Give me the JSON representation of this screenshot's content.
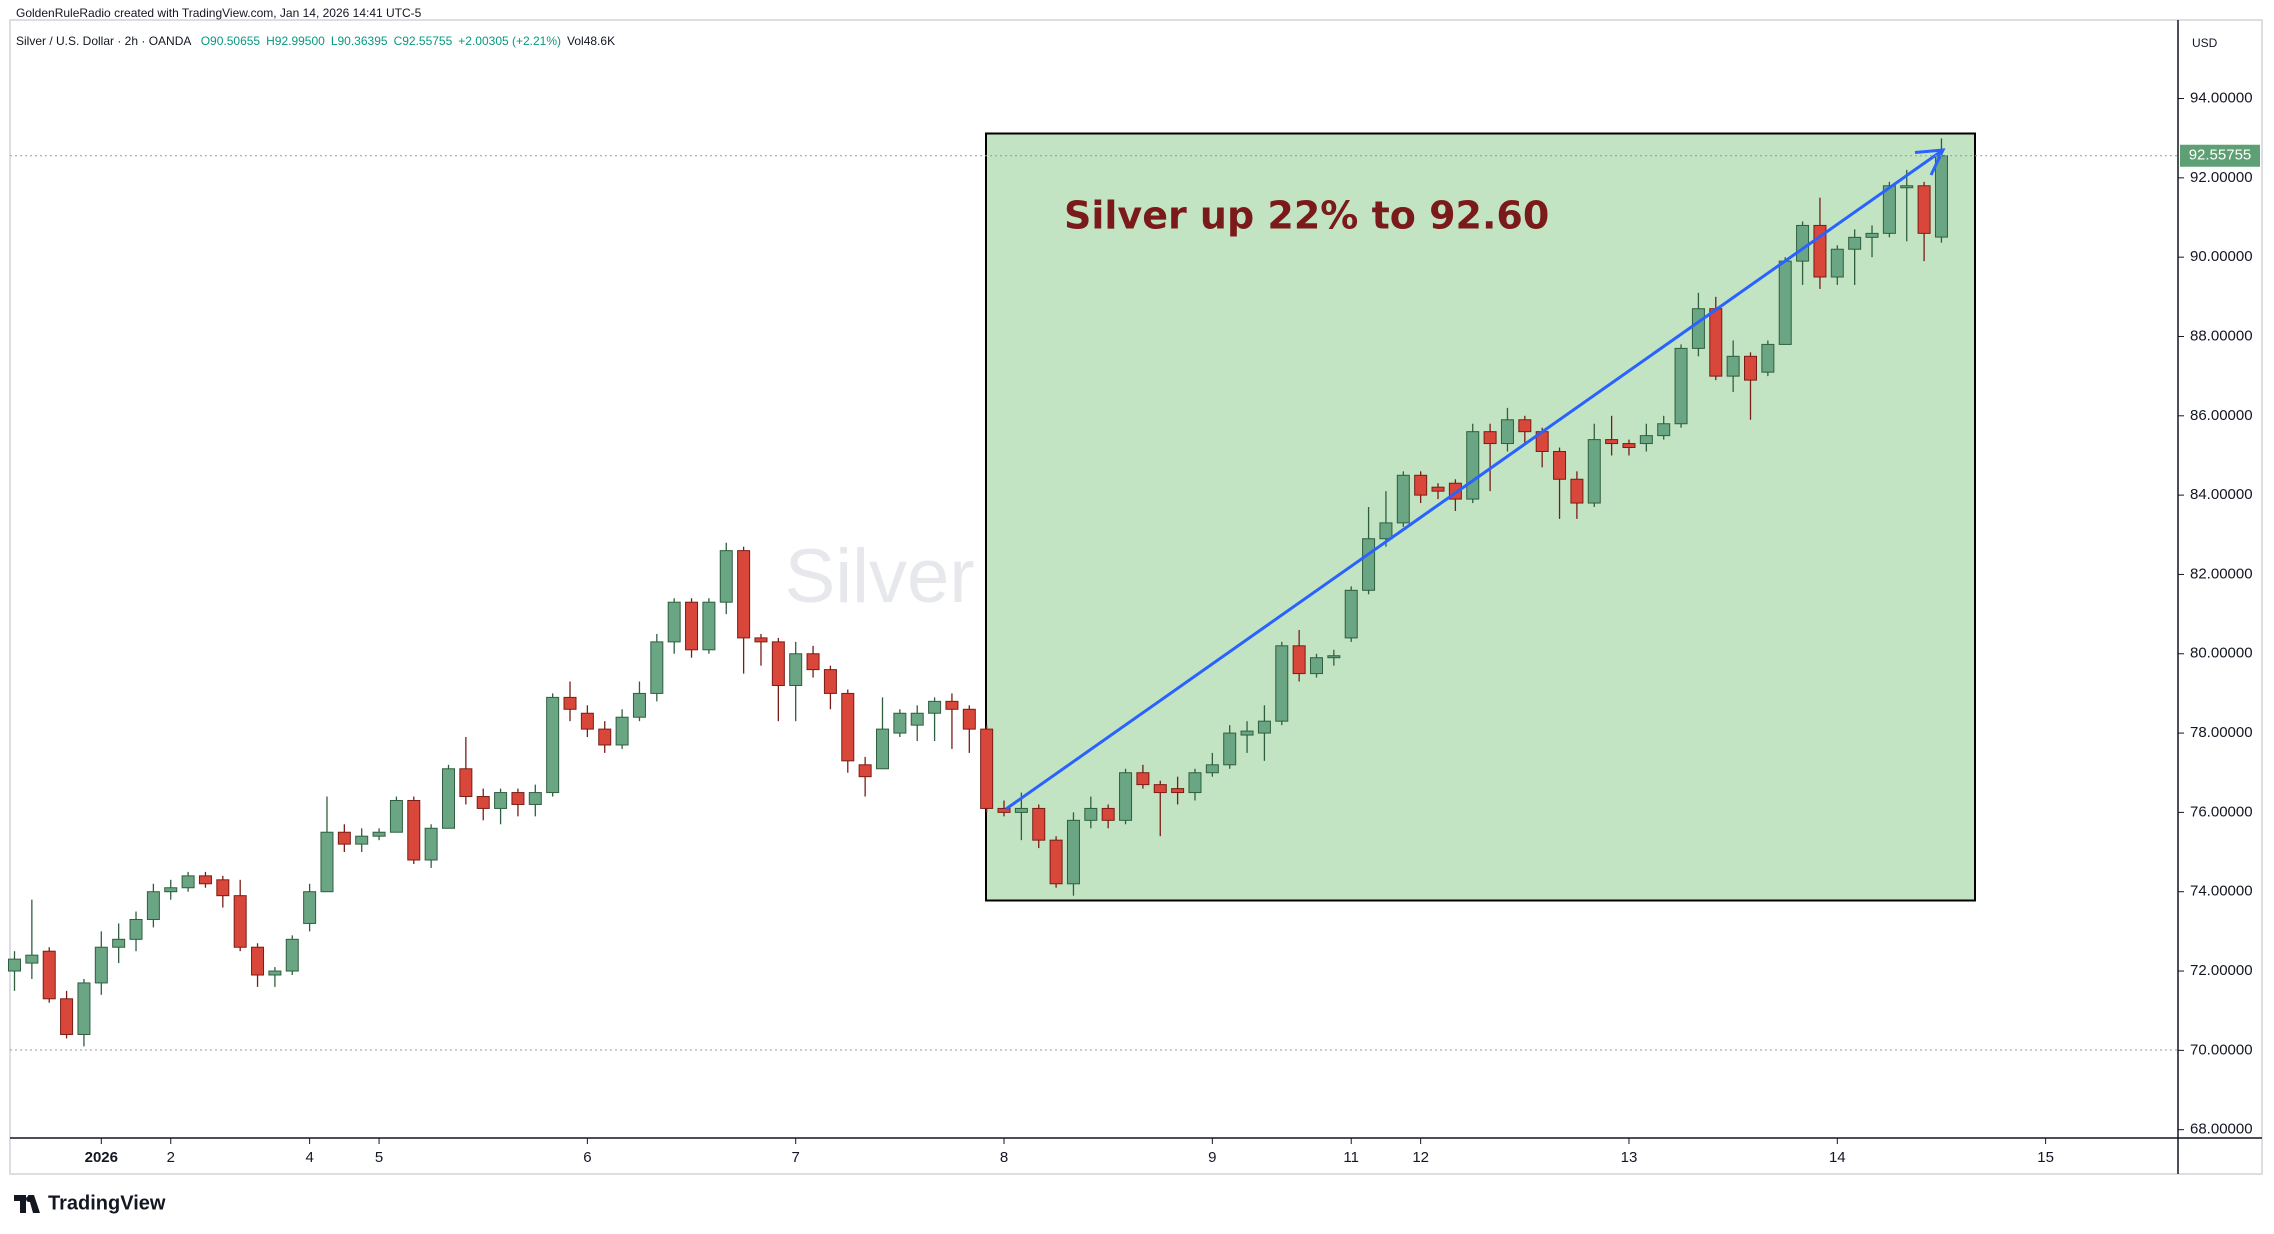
{
  "chart_data": {
    "type": "candlestick",
    "credit": "GoldenRuleRadio created with TradingView.com, Jan 14, 2026 14:41 UTC-5",
    "symbol": "Silver / U.S. Dollar · 2h · OANDA",
    "ohlc_header": [
      "O90.50655",
      "H92.99500",
      "L90.36395",
      "C92.55755",
      "+2.00305 (+2.21%)",
      "Vol48.6K"
    ],
    "watermark": "Silver / U.S. Dollar",
    "annotation": "Silver up 22% to 92.60",
    "currency": "USD",
    "price_label": "92.55755",
    "logo": "TradingView",
    "up_color": "#6aa584",
    "down_color": "#d9473b",
    "categories": [
      null,
      null,
      null,
      null,
      null,
      "2026",
      null,
      null,
      null,
      "2",
      null,
      null,
      null,
      null,
      null,
      null,
      null,
      "4",
      null,
      null,
      null,
      "5",
      null,
      null,
      null,
      null,
      null,
      null,
      null,
      null,
      null,
      null,
      null,
      "6",
      null,
      null,
      null,
      null,
      null,
      null,
      null,
      null,
      null,
      null,
      null,
      "7",
      null,
      null,
      null,
      null,
      null,
      null,
      null,
      null,
      null,
      null,
      null,
      "8",
      null,
      null,
      null,
      null,
      null,
      null,
      null,
      null,
      null,
      null,
      null,
      "9",
      null,
      null,
      null,
      null,
      null,
      null,
      null,
      "11",
      null,
      null,
      null,
      "12",
      null,
      null,
      null,
      null,
      null,
      null,
      null,
      null,
      null,
      null,
      null,
      "13",
      null,
      null,
      null,
      null,
      null,
      null,
      null,
      null,
      null,
      null,
      null,
      "14",
      null,
      null,
      null,
      null,
      null,
      null,
      null,
      null,
      null,
      null,
      null,
      "15"
    ],
    "open": [
      72.0,
      72.2,
      72.5,
      71.3,
      70.4,
      71.7,
      72.6,
      72.8,
      73.3,
      74.0,
      74.1,
      74.4,
      74.3,
      73.9,
      72.6,
      71.9,
      72.0,
      73.2,
      74.0,
      75.5,
      75.2,
      75.4,
      75.5,
      76.3,
      74.8,
      75.6,
      77.1,
      76.4,
      76.1,
      76.5,
      76.2,
      76.5,
      78.9,
      78.5,
      78.1,
      77.7,
      78.4,
      79.0,
      80.3,
      81.3,
      80.1,
      81.3,
      82.6,
      80.4,
      80.3,
      79.2,
      80.0,
      79.6,
      79.0,
      77.2,
      77.1,
      78.0,
      78.2,
      78.5,
      78.8,
      78.6,
      78.1,
      76.1,
      76.0,
      76.1,
      75.3,
      74.2,
      75.8,
      76.1,
      75.8,
      77.0,
      76.7,
      76.6,
      76.5,
      77.0,
      77.2,
      77.95,
      78.0,
      78.3,
      80.2,
      79.5,
      79.9,
      80.4,
      81.6,
      82.9,
      83.3,
      84.5,
      84.2,
      84.3,
      83.9,
      85.6,
      85.3,
      85.9,
      85.6,
      85.1,
      84.4,
      83.8,
      85.4,
      85.3,
      85.3,
      85.5,
      85.8,
      87.7,
      88.7,
      87.0,
      87.5,
      87.1,
      87.8,
      89.9,
      90.8,
      89.5,
      90.2,
      90.5,
      90.6,
      91.75,
      91.8,
      90.50655,
      null,
      null,
      null,
      null,
      null,
      null
    ],
    "high": [
      72.5,
      73.8,
      72.6,
      71.5,
      71.8,
      73.0,
      73.2,
      73.5,
      74.2,
      74.3,
      74.5,
      74.5,
      74.4,
      74.3,
      72.7,
      72.1,
      72.9,
      74.2,
      76.4,
      75.7,
      75.6,
      75.6,
      76.4,
      76.4,
      75.7,
      77.2,
      77.9,
      76.6,
      76.6,
      76.6,
      76.7,
      79.0,
      79.3,
      78.7,
      78.3,
      78.6,
      79.3,
      80.5,
      81.4,
      81.4,
      81.4,
      82.8,
      82.7,
      80.5,
      80.4,
      80.3,
      80.2,
      79.7,
      79.1,
      77.4,
      78.9,
      78.6,
      78.7,
      78.9,
      79.0,
      78.7,
      78.2,
      76.3,
      76.5,
      76.2,
      75.4,
      76.0,
      76.4,
      76.2,
      77.1,
      77.2,
      76.8,
      76.9,
      77.1,
      77.5,
      78.2,
      78.3,
      78.7,
      80.3,
      80.6,
      80.0,
      80.1,
      81.7,
      83.7,
      84.1,
      84.6,
      84.6,
      84.3,
      84.4,
      85.8,
      85.8,
      86.2,
      86.0,
      85.7,
      85.2,
      84.6,
      85.8,
      86.0,
      85.4,
      85.8,
      86.0,
      87.8,
      89.1,
      89.0,
      87.9,
      87.6,
      87.9,
      90.0,
      90.9,
      91.5,
      90.3,
      90.7,
      90.8,
      91.9,
      92.2,
      91.9,
      92.995,
      null,
      null,
      null,
      null,
      null,
      null
    ],
    "low": [
      71.5,
      71.8,
      71.2,
      70.3,
      70.1,
      71.4,
      72.2,
      72.5,
      73.1,
      73.8,
      74.0,
      74.1,
      73.6,
      72.5,
      71.6,
      71.6,
      71.9,
      73.0,
      74.0,
      75.0,
      75.0,
      75.3,
      75.5,
      74.7,
      74.6,
      75.6,
      76.2,
      75.8,
      75.7,
      75.9,
      75.9,
      76.4,
      78.3,
      77.9,
      77.5,
      77.6,
      78.3,
      78.8,
      80.0,
      79.9,
      80.0,
      81.0,
      79.5,
      79.7,
      78.3,
      78.3,
      79.4,
      78.6,
      77.0,
      76.4,
      77.1,
      77.9,
      77.8,
      77.8,
      77.6,
      77.5,
      76.0,
      75.9,
      75.3,
      75.1,
      74.1,
      73.9,
      75.6,
      75.6,
      75.7,
      76.6,
      75.4,
      76.2,
      76.3,
      76.9,
      77.1,
      77.5,
      77.3,
      78.2,
      79.3,
      79.4,
      79.7,
      80.3,
      81.5,
      82.7,
      83.2,
      83.8,
      83.9,
      83.6,
      83.8,
      84.1,
      85.1,
      85.3,
      84.7,
      83.4,
      83.4,
      83.7,
      85.0,
      85.0,
      85.1,
      85.4,
      85.7,
      87.5,
      86.9,
      86.6,
      85.9,
      87.0,
      87.8,
      89.3,
      89.2,
      89.3,
      89.3,
      90.0,
      90.5,
      90.4,
      89.9,
      90.36395,
      null,
      null,
      null,
      null,
      null,
      null
    ],
    "close": [
      72.3,
      72.4,
      71.3,
      70.4,
      71.7,
      72.6,
      72.8,
      73.3,
      74.0,
      74.1,
      74.4,
      74.2,
      73.9,
      72.6,
      71.9,
      72.0,
      72.8,
      74.0,
      75.5,
      75.2,
      75.4,
      75.5,
      76.3,
      74.8,
      75.6,
      77.1,
      76.4,
      76.1,
      76.5,
      76.2,
      76.5,
      78.9,
      78.6,
      78.1,
      77.7,
      78.4,
      79.0,
      80.3,
      81.3,
      80.1,
      81.3,
      82.6,
      80.4,
      80.3,
      79.2,
      80.0,
      79.6,
      79.0,
      77.3,
      76.9,
      78.1,
      78.5,
      78.5,
      78.8,
      78.6,
      78.1,
      76.1,
      76.0,
      76.1,
      75.3,
      74.2,
      75.8,
      76.1,
      75.8,
      77.0,
      76.7,
      76.5,
      76.5,
      77.0,
      77.2,
      78.0,
      78.05,
      78.3,
      80.2,
      79.5,
      79.9,
      79.95,
      81.6,
      82.9,
      83.3,
      84.5,
      84.0,
      84.1,
      83.9,
      85.6,
      85.3,
      85.9,
      85.6,
      85.1,
      84.4,
      83.8,
      85.4,
      85.3,
      85.2,
      85.5,
      85.8,
      87.7,
      88.7,
      87.0,
      87.5,
      86.9,
      87.8,
      89.9,
      90.8,
      89.5,
      90.2,
      90.5,
      90.6,
      91.8,
      91.8,
      90.6,
      92.55755,
      null,
      null,
      null,
      null,
      null,
      null
    ],
    "ylim": [
      67.79,
      95.98
    ],
    "yticks": [
      {
        "value": 68,
        "label": "68.00000"
      },
      {
        "value": 70,
        "label": "70.00000"
      },
      {
        "value": 72,
        "label": "72.00000"
      },
      {
        "value": 74,
        "label": "74.00000"
      },
      {
        "value": 76,
        "label": "76.00000"
      },
      {
        "value": 78,
        "label": "78.00000"
      },
      {
        "value": 80,
        "label": "80.00000"
      },
      {
        "value": 82,
        "label": "82.00000"
      },
      {
        "value": 84,
        "label": "84.00000"
      },
      {
        "value": 86,
        "label": "86.00000"
      },
      {
        "value": 88,
        "label": "88.00000"
      },
      {
        "value": 90,
        "label": "90.00000"
      },
      {
        "value": 92,
        "label": "92.00000"
      },
      {
        "value": 94,
        "label": "94.00000"
      }
    ],
    "grid": false
  }
}
